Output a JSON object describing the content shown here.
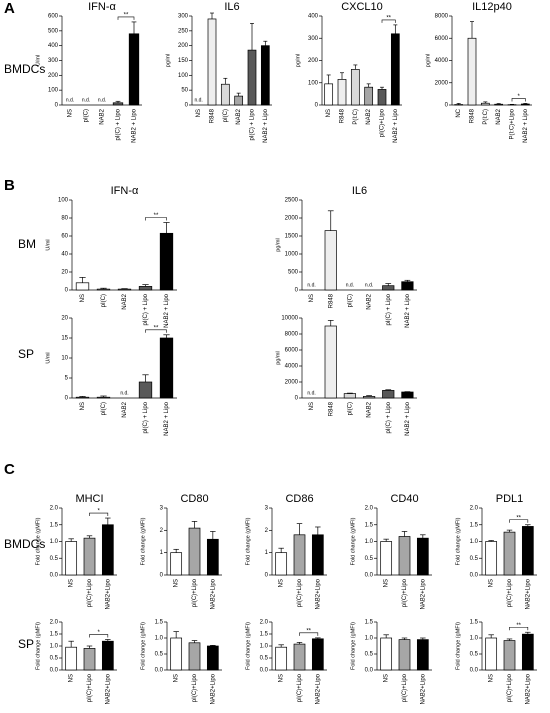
{
  "panel_labels": [
    "A",
    "B",
    "C"
  ],
  "row_labels": [
    "BMDCs",
    "BM",
    "SP",
    "BMDCs",
    "SP"
  ],
  "chart_data": [
    {
      "type": "bar",
      "title": "IFN-α",
      "ylabel": "U/ml",
      "categories": [
        "NS",
        "pI(C)",
        "NAB2",
        "pI(C) + Lipo",
        "NAB2 + Lipo"
      ],
      "values": [
        null,
        null,
        null,
        15,
        480
      ],
      "errors": [
        null,
        null,
        null,
        10,
        80
      ],
      "value_labels": [
        "n.d.",
        "n.d.",
        "n.d.",
        null,
        null
      ],
      "colors": [
        "#ffffff",
        "#d9d9d9",
        "#a6a6a6",
        "#595959",
        "#000000"
      ],
      "ylim": [
        0,
        600
      ],
      "yticks": [
        0,
        100,
        200,
        300,
        400,
        500,
        600
      ],
      "significance": [
        {
          "label": "**",
          "pair": [
            3,
            4
          ]
        }
      ]
    },
    {
      "type": "bar",
      "title": "IL6",
      "ylabel": "pg/ml",
      "categories": [
        "NS",
        "R848",
        "pI(C)",
        "NAB2",
        "pI(C) + Lipo",
        "NAB2 + Lipo"
      ],
      "values": [
        null,
        290,
        70,
        30,
        185,
        200
      ],
      "errors": [
        null,
        20,
        20,
        10,
        90,
        15
      ],
      "value_labels": [
        "n.d.",
        null,
        null,
        null,
        null,
        null
      ],
      "colors": [
        "#ffffff",
        "#eeeeee",
        "#d9d9d9",
        "#a6a6a6",
        "#595959",
        "#000000"
      ],
      "ylim": [
        0,
        300
      ],
      "yticks": [
        0,
        50,
        100,
        150,
        200,
        250,
        300
      ]
    },
    {
      "type": "bar",
      "title": "CXCL10",
      "ylabel": "pg/ml",
      "categories": [
        "NS",
        "R848",
        "P(I:C)",
        "NAB2",
        "pI(C)+Lipo",
        "NAB2 + Lipo"
      ],
      "values": [
        95,
        115,
        160,
        80,
        70,
        320
      ],
      "errors": [
        40,
        30,
        20,
        15,
        10,
        40
      ],
      "colors": [
        "#ffffff",
        "#eeeeee",
        "#d9d9d9",
        "#a6a6a6",
        "#595959",
        "#000000"
      ],
      "ylim": [
        0,
        400
      ],
      "yticks": [
        0,
        100,
        200,
        300,
        400
      ],
      "significance": [
        {
          "label": "**",
          "pair": [
            4,
            5
          ]
        }
      ]
    },
    {
      "type": "bar",
      "title": "IL12p40",
      "ylabel": "pg/ml",
      "categories": [
        "NC",
        "R848",
        "P(I:C)",
        "NAB2",
        "P(I:C)+Lipo",
        "NAB2 + Lipo"
      ],
      "values": [
        40,
        6000,
        160,
        70,
        30,
        90
      ],
      "errors": [
        100,
        1500,
        120,
        60,
        30,
        50
      ],
      "colors": [
        "#ffffff",
        "#eeeeee",
        "#d9d9d9",
        "#a6a6a6",
        "#595959",
        "#000000"
      ],
      "ylim": [
        0,
        8000
      ],
      "yticks": [
        0,
        2000,
        4000,
        6000,
        8000
      ],
      "significance": [
        {
          "label": "*",
          "pair": [
            4,
            5
          ]
        }
      ]
    },
    {
      "type": "bar",
      "title": "IFN-α",
      "ylabel": "U/ml",
      "categories": [
        "NS",
        "pI(C)",
        "NAB2",
        "pI(C) + Lipo",
        "NAB2 + Lipo"
      ],
      "values": [
        8,
        1,
        1,
        4,
        63
      ],
      "errors": [
        6,
        1,
        0.5,
        2,
        12
      ],
      "colors": [
        "#ffffff",
        "#d9d9d9",
        "#a6a6a6",
        "#595959",
        "#000000"
      ],
      "ylim": [
        0,
        100
      ],
      "yticks": [
        0,
        20,
        40,
        60,
        80,
        100
      ],
      "significance": [
        {
          "label": "**",
          "pair": [
            3,
            4
          ]
        }
      ]
    },
    {
      "type": "bar",
      "title": "IL6",
      "ylabel": "pg/ml",
      "categories": [
        "NS",
        "R848",
        "pI(C)",
        "NAB2",
        "pI(C) + Lipo",
        "NAB2 + Lipo"
      ],
      "values": [
        null,
        1650,
        null,
        null,
        120,
        230
      ],
      "errors": [
        null,
        550,
        null,
        null,
        60,
        40
      ],
      "value_labels": [
        "n.d.",
        null,
        "n.d.",
        "n.d.",
        null,
        null
      ],
      "colors": [
        "#ffffff",
        "#eeeeee",
        "#d9d9d9",
        "#a6a6a6",
        "#595959",
        "#000000"
      ],
      "ylim": [
        0,
        2500
      ],
      "yticks": [
        0,
        500,
        1000,
        1500,
        2000,
        2500
      ]
    },
    {
      "type": "bar",
      "ylabel": "U/ml",
      "categories": [
        "NS",
        "pI(C)",
        "NAB2",
        "pI(C) + Lipo",
        "NAB2 + Lipo"
      ],
      "values": [
        0.2,
        0.2,
        null,
        4,
        15
      ],
      "errors": [
        0.2,
        0.3,
        null,
        1.8,
        0.8
      ],
      "value_labels": [
        null,
        null,
        "n.d.",
        null,
        null
      ],
      "colors": [
        "#ffffff",
        "#d9d9d9",
        "#a6a6a6",
        "#595959",
        "#000000"
      ],
      "ylim": [
        0,
        20
      ],
      "yticks": [
        0,
        5,
        10,
        15,
        20
      ],
      "significance": [
        {
          "label": "**",
          "pair": [
            3,
            4
          ]
        }
      ]
    },
    {
      "type": "bar",
      "ylabel": "pg/ml",
      "categories": [
        "NS",
        "R848",
        "pI(C)",
        "NAB2",
        "pI(C) + Lipo",
        "NAB2 + Lipo"
      ],
      "values": [
        null,
        9000,
        550,
        200,
        950,
        750
      ],
      "errors": [
        null,
        700,
        60,
        100,
        80,
        40
      ],
      "value_labels": [
        "n.d.",
        null,
        null,
        null,
        null,
        null
      ],
      "colors": [
        "#ffffff",
        "#eeeeee",
        "#d9d9d9",
        "#a6a6a6",
        "#595959",
        "#000000"
      ],
      "ylim": [
        0,
        10000
      ],
      "yticks": [
        0,
        2000,
        4000,
        6000,
        8000,
        10000
      ]
    },
    {
      "type": "bar",
      "title": "MHCI",
      "ylabel": "Fold change (gMFI)",
      "categories": [
        "NS",
        "pI(C)+Lipo",
        "NAB2+Lipo"
      ],
      "values": [
        1.0,
        1.1,
        1.5
      ],
      "errors": [
        0.08,
        0.07,
        0.2
      ],
      "colors": [
        "#ffffff",
        "#a6a6a6",
        "#000000"
      ],
      "ylim": [
        0,
        2
      ],
      "yticks": [
        {
          "value": 0,
          "label": "0.0"
        },
        0.5,
        {
          "value": 1,
          "label": "1.0"
        },
        1.5,
        {
          "value": 2,
          "label": "2.0"
        }
      ],
      "significance": [
        {
          "label": "*",
          "pair": [
            1,
            2
          ]
        }
      ]
    },
    {
      "type": "bar",
      "title": "CD80",
      "ylabel": "Fold change (gMFI)",
      "categories": [
        "NS",
        "pI(C)+Lipo",
        "NAB2+Lipo"
      ],
      "values": [
        1.0,
        2.1,
        1.6
      ],
      "errors": [
        0.15,
        0.3,
        0.35
      ],
      "colors": [
        "#ffffff",
        "#a6a6a6",
        "#000000"
      ],
      "ylim": [
        0,
        3
      ],
      "yticks": [
        0,
        1,
        2,
        3
      ]
    },
    {
      "type": "bar",
      "title": "CD86",
      "ylabel": "Fold change (gMFI)",
      "categories": [
        "NS",
        "pI(C)+Lipo",
        "NAB2+Lipo"
      ],
      "values": [
        1.0,
        1.8,
        1.8
      ],
      "errors": [
        0.2,
        0.5,
        0.35
      ],
      "colors": [
        "#ffffff",
        "#a6a6a6",
        "#000000"
      ],
      "ylim": [
        0,
        3
      ],
      "yticks": [
        0,
        1,
        2,
        3
      ]
    },
    {
      "type": "bar",
      "title": "CD40",
      "ylabel": "Fold change (gMFI)",
      "categories": [
        "NS",
        "pI(C)+Lipo",
        "NAB2+Lipo"
      ],
      "values": [
        1.0,
        1.15,
        1.1
      ],
      "errors": [
        0.07,
        0.15,
        0.1
      ],
      "colors": [
        "#ffffff",
        "#a6a6a6",
        "#000000"
      ],
      "ylim": [
        0,
        2
      ],
      "yticks": [
        {
          "value": 0,
          "label": "0.0"
        },
        0.5,
        {
          "value": 1,
          "label": "1.0"
        },
        1.5,
        {
          "value": 2,
          "label": "2.0"
        }
      ]
    },
    {
      "type": "bar",
      "title": "PDL1",
      "ylabel": "Fold change (gMFI)",
      "categories": [
        "NS",
        "pI(C)+Lipo",
        "NAB2+Lipo"
      ],
      "values": [
        1.0,
        1.28,
        1.45
      ],
      "errors": [
        0.03,
        0.06,
        0.05
      ],
      "colors": [
        "#ffffff",
        "#a6a6a6",
        "#000000"
      ],
      "ylim": [
        0,
        2
      ],
      "yticks": [
        {
          "value": 0,
          "label": "0.0"
        },
        0.5,
        {
          "value": 1,
          "label": "1.0"
        },
        1.5,
        {
          "value": 2,
          "label": "2.0"
        }
      ],
      "significance": [
        {
          "label": "**",
          "pair": [
            1,
            2
          ]
        }
      ]
    },
    {
      "type": "bar",
      "ylabel": "Fold change (gMFI)",
      "categories": [
        "NS",
        "pI(C)+Lipo",
        "NAB2+Lipo"
      ],
      "values": [
        0.95,
        0.9,
        1.2
      ],
      "errors": [
        0.25,
        0.1,
        0.07
      ],
      "colors": [
        "#ffffff",
        "#a6a6a6",
        "#000000"
      ],
      "ylim": [
        0,
        2
      ],
      "yticks": [
        {
          "value": 0,
          "label": "0.0"
        },
        0.5,
        {
          "value": 1,
          "label": "1.0"
        },
        1.5,
        {
          "value": 2,
          "label": "2.0"
        }
      ],
      "significance": [
        {
          "label": "*",
          "pair": [
            1,
            2
          ]
        }
      ]
    },
    {
      "type": "bar",
      "ylabel": "Fold change (gMFI)",
      "categories": [
        "NS",
        "pI(C)+Lipo",
        "NAB2+Lipo"
      ],
      "values": [
        1.0,
        0.85,
        0.75
      ],
      "errors": [
        0.2,
        0.07,
        0.02
      ],
      "colors": [
        "#ffffff",
        "#a6a6a6",
        "#000000"
      ],
      "ylim": [
        0,
        1.5
      ],
      "yticks": [
        {
          "value": 0,
          "label": "0.0"
        },
        0.5,
        {
          "value": 1,
          "label": "1.0"
        },
        1.5
      ]
    },
    {
      "type": "bar",
      "ylabel": "Fold change (gMFI)",
      "categories": [
        "NS",
        "pI(C)+Lipo",
        "NAB2+Lipo"
      ],
      "values": [
        0.95,
        1.08,
        1.3
      ],
      "errors": [
        0.1,
        0.07,
        0.04
      ],
      "colors": [
        "#ffffff",
        "#a6a6a6",
        "#000000"
      ],
      "ylim": [
        0,
        2
      ],
      "yticks": [
        {
          "value": 0,
          "label": "0.0"
        },
        0.5,
        {
          "value": 1,
          "label": "1.0"
        },
        1.5,
        {
          "value": 2,
          "label": "2.0"
        }
      ],
      "significance": [
        {
          "label": "**",
          "pair": [
            1,
            2
          ]
        }
      ]
    },
    {
      "type": "bar",
      "ylabel": "Fold change (gMFI)",
      "categories": [
        "NS",
        "pI(C)+Lipo",
        "NAB2+Lipo"
      ],
      "values": [
        1.0,
        0.95,
        0.95
      ],
      "errors": [
        0.1,
        0.05,
        0.05
      ],
      "colors": [
        "#ffffff",
        "#a6a6a6",
        "#000000"
      ],
      "ylim": [
        0,
        1.5
      ],
      "yticks": [
        {
          "value": 0,
          "label": "0.0"
        },
        0.5,
        {
          "value": 1,
          "label": "1.0"
        },
        1.5
      ]
    },
    {
      "type": "bar",
      "ylabel": "Fold change (gMFI)",
      "categories": [
        "NS",
        "pI(C)+Lipo",
        "NAB2+Lipo"
      ],
      "values": [
        1.0,
        0.92,
        1.12
      ],
      "errors": [
        0.1,
        0.05,
        0.06
      ],
      "colors": [
        "#ffffff",
        "#a6a6a6",
        "#000000"
      ],
      "ylim": [
        0,
        1.5
      ],
      "yticks": [
        {
          "value": 0,
          "label": "0.0"
        },
        0.5,
        {
          "value": 1,
          "label": "1.0"
        },
        1.5
      ],
      "significance": [
        {
          "label": "**",
          "pair": [
            1,
            2
          ]
        }
      ]
    }
  ]
}
